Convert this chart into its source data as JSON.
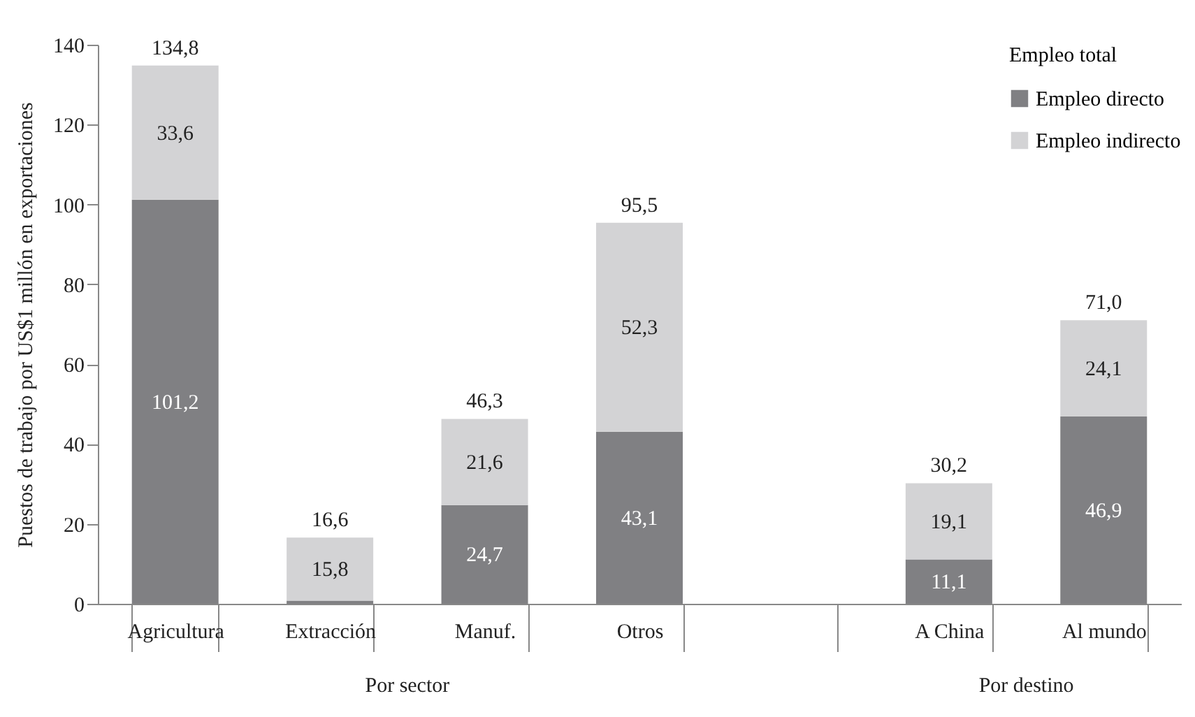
{
  "chart_data": {
    "type": "bar",
    "stacked": true,
    "ylabel": "Puestos de trabajo por US$1 millón en exportaciones",
    "legend_title": "Empleo total",
    "legend": "top right",
    "categories": [
      "Agricultura",
      "Extracción",
      "Manuf.",
      "Otros",
      null,
      "A China",
      "Al mundo"
    ],
    "series": [
      {
        "name": "Empleo directo",
        "color": "#808083",
        "values": [
          101.2,
          0.8,
          24.7,
          43.1,
          null,
          11.1,
          46.9
        ],
        "value_labels": [
          "101,2",
          null,
          "24,7",
          "43,1",
          null,
          "11,1",
          "46,9"
        ]
      },
      {
        "name": "Empleo indirecto",
        "color": "#d3d3d5",
        "values": [
          33.6,
          15.8,
          21.6,
          52.3,
          null,
          19.1,
          24.1
        ],
        "value_labels": [
          "33,6",
          "15,8",
          "21,6",
          "52,3",
          null,
          "19,1",
          "24,1"
        ]
      }
    ],
    "totals": [
      "134,8",
      "16,6",
      "46,3",
      "95,5",
      null,
      "30,2",
      "71,0"
    ],
    "ylim": [
      0,
      140
    ],
    "yticks": [
      0,
      20,
      40,
      60,
      80,
      100,
      120,
      140
    ],
    "grid": false,
    "annotations": [
      "Por sector",
      "Por destino"
    ]
  }
}
